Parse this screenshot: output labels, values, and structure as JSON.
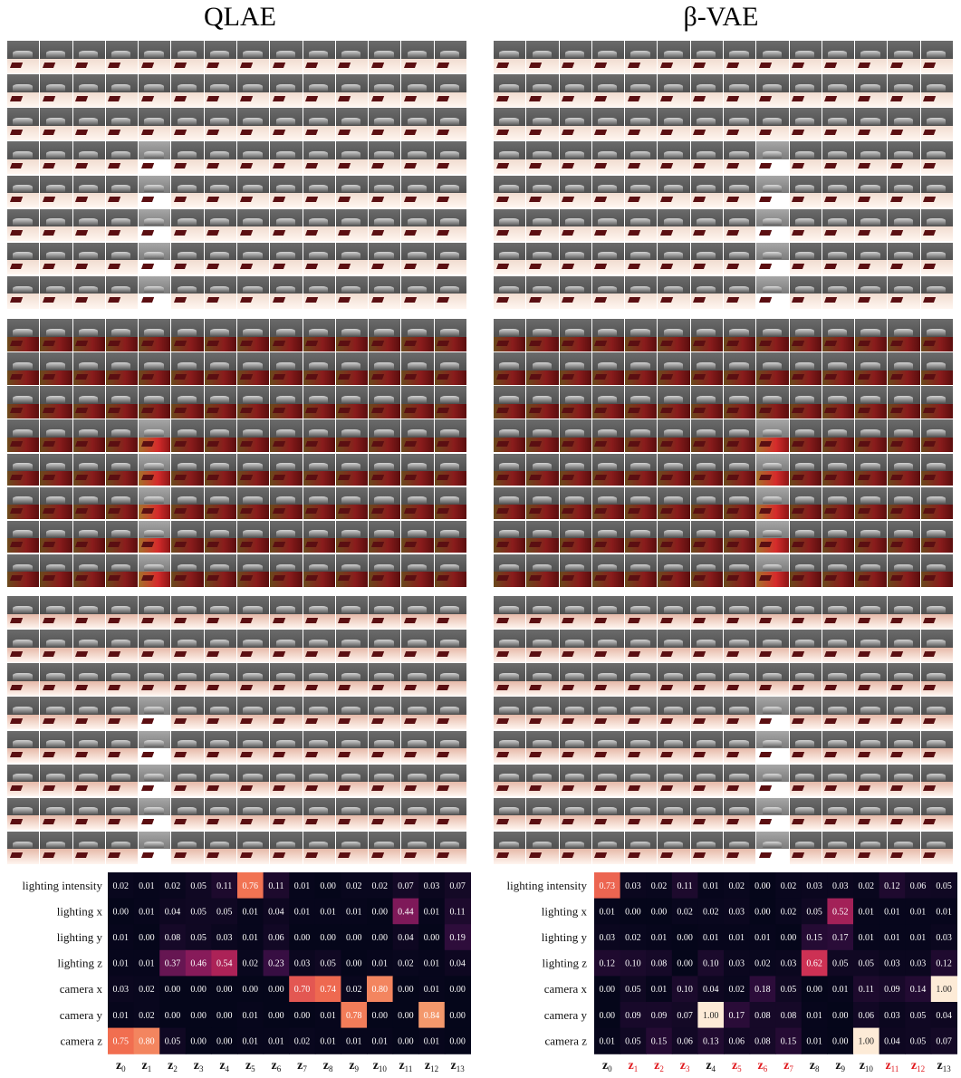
{
  "titles": {
    "left": "QLAE",
    "right": "β-VAE"
  },
  "colors": {
    "floor_block1": "#f1dcd0",
    "floor_block2": "#6a4a1c",
    "floor_block3": "#e6b9a8",
    "wall": "#505050",
    "heatmap_low": "#05061a",
    "heatmap_mid": "#b5295a",
    "heatmap_high": "#fde9d6"
  },
  "chart_data": [
    {
      "type": "heatmap",
      "title": "",
      "rows": [
        "lighting intensity",
        "lighting x",
        "lighting y",
        "lighting z",
        "camera x",
        "camera y",
        "camera z"
      ],
      "columns": [
        "z0",
        "z1",
        "z2",
        "z3",
        "z4",
        "z5",
        "z6",
        "z7",
        "z8",
        "z9",
        "z10",
        "z11",
        "z12",
        "z13"
      ],
      "highlighted_columns": [],
      "values": [
        [
          0.02,
          0.01,
          0.02,
          0.05,
          0.11,
          0.76,
          0.11,
          0.01,
          0.0,
          0.02,
          0.02,
          0.07,
          0.03,
          0.07
        ],
        [
          0.0,
          0.01,
          0.04,
          0.05,
          0.05,
          0.01,
          0.04,
          0.01,
          0.01,
          0.01,
          0.0,
          0.44,
          0.01,
          0.11
        ],
        [
          0.01,
          0.0,
          0.08,
          0.05,
          0.03,
          0.01,
          0.06,
          0.0,
          0.0,
          0.0,
          0.0,
          0.04,
          0.0,
          0.19
        ],
        [
          0.01,
          0.01,
          0.37,
          0.46,
          0.54,
          0.02,
          0.23,
          0.03,
          0.05,
          0.0,
          0.01,
          0.02,
          0.01,
          0.04
        ],
        [
          0.03,
          0.02,
          0.0,
          0.0,
          0.0,
          0.0,
          0.0,
          0.7,
          0.74,
          0.02,
          0.8,
          0.0,
          0.01,
          0.0
        ],
        [
          0.01,
          0.02,
          0.0,
          0.0,
          0.0,
          0.01,
          0.0,
          0.0,
          0.01,
          0.78,
          0.0,
          0.0,
          0.84,
          0.0
        ],
        [
          0.75,
          0.8,
          0.05,
          0.0,
          0.0,
          0.01,
          0.01,
          0.02,
          0.01,
          0.01,
          0.01,
          0.0,
          0.01,
          0.0
        ]
      ]
    },
    {
      "type": "heatmap",
      "title": "",
      "rows": [
        "lighting intensity",
        "lighting x",
        "lighting y",
        "lighting z",
        "camera x",
        "camera y",
        "camera z"
      ],
      "columns": [
        "z0",
        "z1",
        "z2",
        "z3",
        "z4",
        "z5",
        "z6",
        "z7",
        "z8",
        "z9",
        "z10",
        "z11",
        "z12",
        "z13"
      ],
      "highlighted_columns": [
        1,
        2,
        3,
        5,
        6,
        7,
        11,
        12
      ],
      "highlight_color": "#e0191e",
      "values": [
        [
          0.73,
          0.03,
          0.02,
          0.11,
          0.01,
          0.02,
          0.0,
          0.02,
          0.03,
          0.03,
          0.02,
          0.12,
          0.06,
          0.05
        ],
        [
          0.01,
          0.0,
          0.0,
          0.02,
          0.02,
          0.03,
          0.0,
          0.02,
          0.05,
          0.52,
          0.01,
          0.01,
          0.01,
          0.01
        ],
        [
          0.03,
          0.02,
          0.01,
          0.0,
          0.01,
          0.01,
          0.01,
          0.0,
          0.15,
          0.17,
          0.01,
          0.01,
          0.01,
          0.03
        ],
        [
          0.12,
          0.1,
          0.08,
          0.0,
          0.1,
          0.03,
          0.02,
          0.03,
          0.62,
          0.05,
          0.05,
          0.03,
          0.03,
          0.12
        ],
        [
          0.0,
          0.05,
          0.01,
          0.1,
          0.04,
          0.02,
          0.18,
          0.05,
          0.0,
          0.01,
          0.11,
          0.09,
          0.14,
          1.0
        ],
        [
          0.0,
          0.09,
          0.09,
          0.07,
          1.0,
          0.17,
          0.08,
          0.08,
          0.01,
          0.0,
          0.06,
          0.03,
          0.05,
          0.04
        ],
        [
          0.01,
          0.05,
          0.15,
          0.06,
          0.13,
          0.06,
          0.08,
          0.15,
          0.01,
          0.0,
          1.0,
          0.04,
          0.05,
          0.07
        ]
      ]
    }
  ]
}
